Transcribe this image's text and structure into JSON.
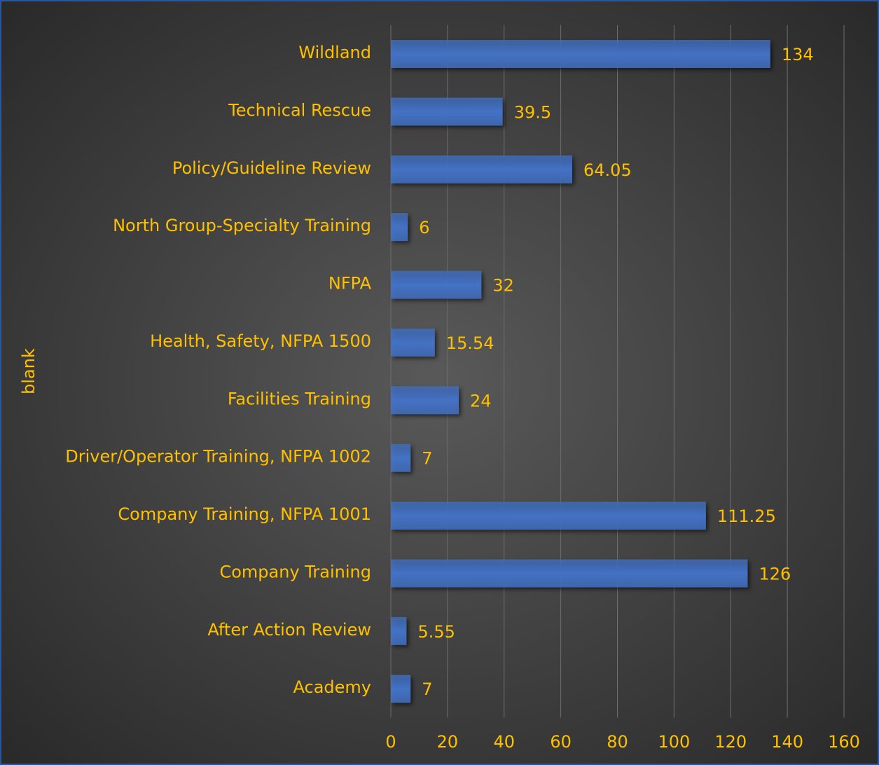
{
  "chart_data": {
    "type": "barh",
    "y_label": "blank",
    "categories": [
      "Wildland",
      "Technical Rescue",
      "Policy/Guideline Review",
      "North Group-Specialty Training",
      "NFPA",
      "Health, Safety, NFPA 1500",
      "Facilities Training",
      "Driver/Operator Training, NFPA 1002",
      "Company Training, NFPA 1001",
      "Company Training",
      "After Action Review",
      "Academy"
    ],
    "values": [
      134,
      39.5,
      64.05,
      6,
      32,
      15.54,
      24,
      7,
      111.25,
      126,
      5.55,
      7
    ],
    "color": "#4472c4",
    "xlim": [
      0,
      160
    ],
    "xticks": [
      0,
      20,
      40,
      60,
      80,
      100,
      120,
      140,
      160
    ],
    "grid": true
  }
}
